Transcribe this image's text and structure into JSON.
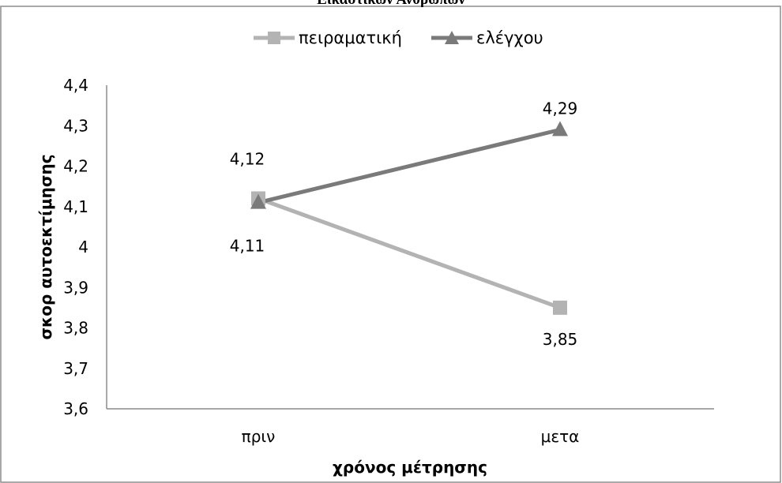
{
  "chart_data": {
    "type": "line",
    "title": "Εικαστικών Ανθρώπων",
    "xlabel": "χρόνος μέτρησης",
    "ylabel": "σκορ αυτοεκτίμησης",
    "categories": [
      "πριν",
      "μετα"
    ],
    "ylim": [
      3.6,
      4.4
    ],
    "yticks": [
      3.6,
      3.7,
      3.8,
      3.9,
      4.0,
      4.1,
      4.2,
      4.3,
      4.4
    ],
    "ytick_labels": [
      "3,6",
      "3,7",
      "3,8",
      "3,9",
      "4",
      "4,1",
      "4,2",
      "4,3",
      "4,4"
    ],
    "grid": false,
    "legend_position": "top",
    "series": [
      {
        "name": "πειραματική",
        "values": [
          4.12,
          3.85
        ],
        "labels": [
          "4,12",
          "3,85"
        ],
        "color": "#b3b3b3",
        "marker": "square"
      },
      {
        "name": "ελέγχου",
        "values": [
          4.11,
          4.29
        ],
        "labels": [
          "4,11",
          "4,29"
        ],
        "color": "#7a7a7a",
        "marker": "triangle"
      }
    ]
  }
}
